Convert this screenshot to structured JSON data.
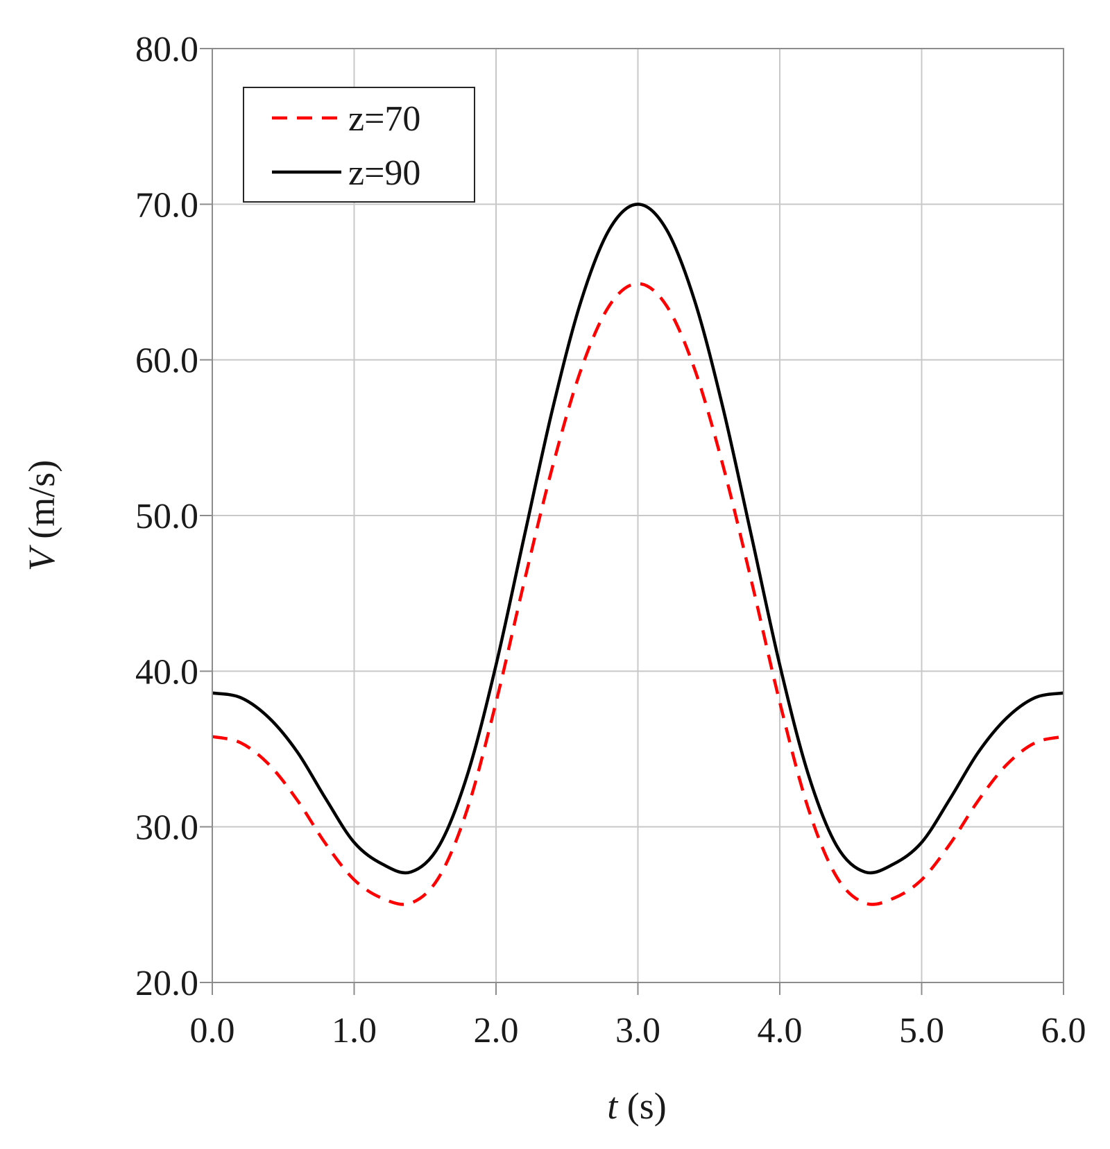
{
  "chart_data": {
    "type": "line",
    "xlabel_var": "t",
    "xlabel_unit": " (s)",
    "ylabel_var": "V",
    "ylabel_unit": " (m/s)",
    "xlim": [
      0,
      6
    ],
    "ylim": [
      20,
      80
    ],
    "xticks": [
      0,
      1,
      2,
      3,
      4,
      5,
      6
    ],
    "yticks": [
      20,
      30,
      40,
      50,
      60,
      70,
      80
    ],
    "xtick_labels": [
      "0.0",
      "1.0",
      "2.0",
      "3.0",
      "4.0",
      "5.0",
      "6.0"
    ],
    "ytick_labels": [
      "20.0",
      "30.0",
      "40.0",
      "50.0",
      "60.0",
      "70.0",
      "80.0"
    ],
    "grid": true,
    "legend_position": "top-left",
    "series": [
      {
        "name": "z=70",
        "color": "#ff0000",
        "style": "dashed",
        "x": [
          0.0,
          0.2,
          0.4,
          0.6,
          0.8,
          1.0,
          1.2,
          1.4,
          1.6,
          1.8,
          2.0,
          2.2,
          2.4,
          2.6,
          2.8,
          3.0,
          3.2,
          3.4,
          3.6,
          3.8,
          4.0,
          4.2,
          4.4,
          4.6,
          4.8,
          5.0,
          5.2,
          5.4,
          5.6,
          5.8,
          6.0
        ],
        "y": [
          35.8,
          35.4,
          34.0,
          31.7,
          28.9,
          26.6,
          25.4,
          25.1,
          26.8,
          31.2,
          38.0,
          45.8,
          53.2,
          59.4,
          63.5,
          64.9,
          63.5,
          59.4,
          53.2,
          45.8,
          38.0,
          31.2,
          26.8,
          25.1,
          25.4,
          26.6,
          28.9,
          31.7,
          34.0,
          35.4,
          35.8
        ]
      },
      {
        "name": "z=90",
        "color": "#000000",
        "style": "solid",
        "x": [
          0.0,
          0.2,
          0.4,
          0.6,
          0.8,
          1.0,
          1.2,
          1.4,
          1.6,
          1.8,
          2.0,
          2.2,
          2.4,
          2.6,
          2.8,
          3.0,
          3.2,
          3.4,
          3.6,
          3.8,
          4.0,
          4.2,
          4.4,
          4.6,
          4.8,
          5.0,
          5.2,
          5.4,
          5.6,
          5.8,
          6.0
        ],
        "y": [
          38.6,
          38.3,
          37.0,
          34.8,
          31.8,
          29.0,
          27.6,
          27.1,
          28.8,
          33.4,
          40.4,
          48.7,
          56.9,
          63.8,
          68.4,
          70.0,
          68.4,
          63.8,
          56.9,
          48.7,
          40.4,
          33.4,
          28.8,
          27.1,
          27.6,
          29.0,
          31.8,
          34.8,
          37.0,
          38.3,
          38.6
        ]
      }
    ]
  }
}
